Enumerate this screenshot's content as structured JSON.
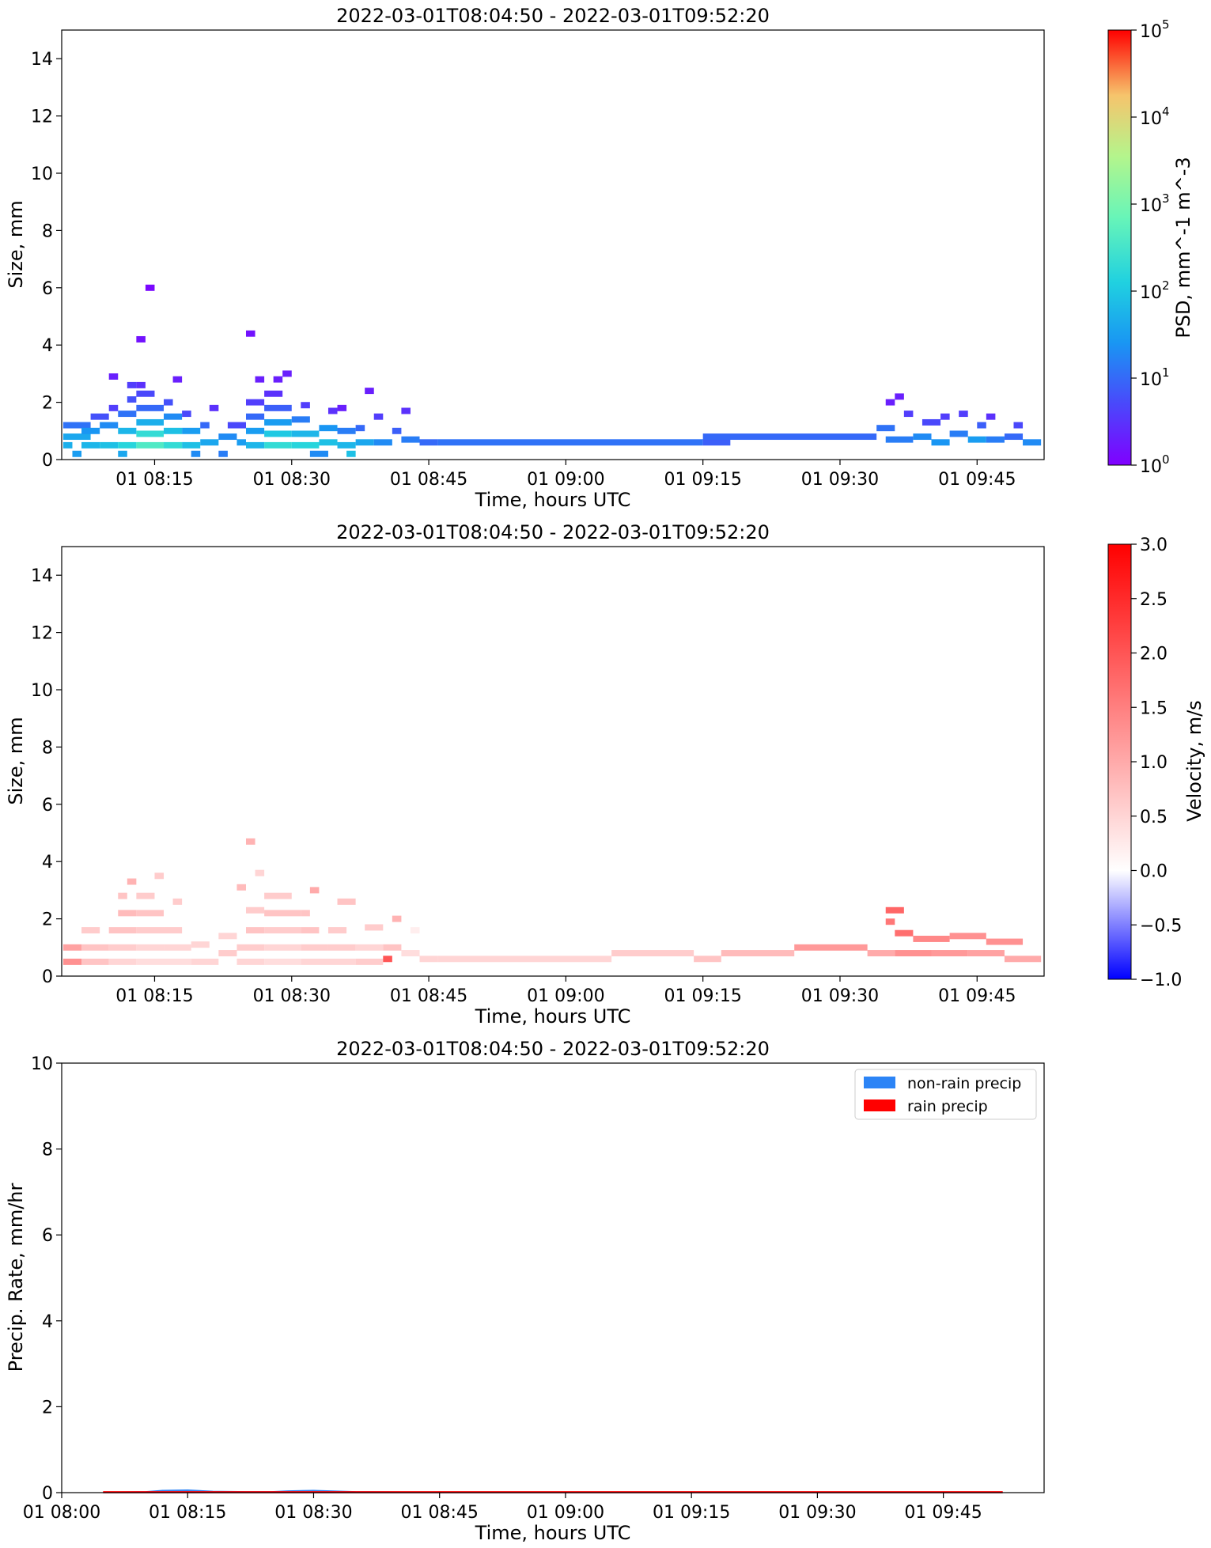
{
  "figure": {
    "panels": 3
  },
  "chart_data": [
    {
      "type": "heatmap",
      "title": "2022-03-01T08:04:50 - 2022-03-01T09:52:20",
      "xlabel": "Time, hours UTC",
      "ylabel": "Size, mm",
      "xlim": [
        "08:04:50",
        "09:52:20"
      ],
      "ylim": [
        0,
        15
      ],
      "x_ticks": [
        "01 08:15",
        "01 08:30",
        "01 08:45",
        "01 09:00",
        "01 09:15",
        "01 09:30",
        "01 09:45"
      ],
      "y_ticks": [
        "0",
        "2",
        "4",
        "6",
        "8",
        "10",
        "12",
        "14"
      ],
      "grid": false,
      "colorbar": {
        "label": "PSD, mm^-1 m^-3",
        "scale": "log",
        "range": [
          1,
          100000
        ],
        "ticks": [
          {
            "base": "10",
            "exp": "0"
          },
          {
            "base": "10",
            "exp": "1"
          },
          {
            "base": "10",
            "exp": "2"
          },
          {
            "base": "10",
            "exp": "3"
          },
          {
            "base": "10",
            "exp": "4"
          },
          {
            "base": "10",
            "exp": "5"
          }
        ],
        "colormap": "rainbow"
      },
      "cells": [
        [
          "08:05",
          "08:06",
          0.5,
          50
        ],
        [
          "08:05",
          "08:08",
          0.8,
          40
        ],
        [
          "08:05",
          "08:08",
          1.2,
          12
        ],
        [
          "08:06",
          "08:07",
          0.2,
          30
        ],
        [
          "08:07",
          "08:09",
          0.5,
          60
        ],
        [
          "08:07",
          "08:09",
          1.0,
          25
        ],
        [
          "08:08",
          "08:10",
          1.5,
          6
        ],
        [
          "08:09",
          "08:11",
          0.5,
          80
        ],
        [
          "08:09",
          "08:11",
          1.2,
          20
        ],
        [
          "08:10",
          "08:11",
          1.8,
          4
        ],
        [
          "08:10",
          "08:11",
          2.9,
          2
        ],
        [
          "08:11",
          "08:12",
          0.2,
          40
        ],
        [
          "08:11",
          "08:13",
          0.5,
          150
        ],
        [
          "08:11",
          "08:13",
          1.0,
          60
        ],
        [
          "08:11",
          "08:13",
          1.6,
          12
        ],
        [
          "08:12",
          "08:13",
          2.1,
          6
        ],
        [
          "08:12",
          "08:13",
          2.6,
          4
        ],
        [
          "08:13",
          "08:16",
          0.5,
          400
        ],
        [
          "08:13",
          "08:16",
          0.9,
          200
        ],
        [
          "08:13",
          "08:16",
          1.3,
          50
        ],
        [
          "08:13",
          "08:16",
          1.8,
          10
        ],
        [
          "08:13",
          "08:15",
          2.3,
          5
        ],
        [
          "08:13",
          "08:14",
          2.6,
          3
        ],
        [
          "08:13",
          "08:14",
          4.2,
          1.5
        ],
        [
          "08:14",
          "08:15",
          6.0,
          1.2
        ],
        [
          "08:16",
          "08:18",
          0.5,
          200
        ],
        [
          "08:16",
          "08:18",
          1.0,
          80
        ],
        [
          "08:16",
          "08:18",
          1.5,
          20
        ],
        [
          "08:16",
          "08:17",
          2.0,
          6
        ],
        [
          "08:17",
          "08:18",
          2.8,
          2
        ],
        [
          "08:18",
          "08:20",
          0.5,
          80
        ],
        [
          "08:18",
          "08:20",
          1.0,
          30
        ],
        [
          "08:18",
          "08:19",
          1.6,
          5
        ],
        [
          "08:19",
          "08:20",
          0.2,
          20
        ],
        [
          "08:20",
          "08:22",
          0.6,
          40
        ],
        [
          "08:20",
          "08:21",
          1.2,
          10
        ],
        [
          "08:21",
          "08:22",
          1.8,
          3
        ],
        [
          "08:22",
          "08:23",
          0.2,
          15
        ],
        [
          "08:22",
          "08:24",
          0.8,
          20
        ],
        [
          "08:23",
          "08:25",
          1.2,
          5
        ],
        [
          "08:24",
          "08:25",
          0.6,
          30
        ],
        [
          "08:25",
          "08:26",
          4.4,
          1.5
        ],
        [
          "08:25",
          "08:27",
          0.5,
          60
        ],
        [
          "08:25",
          "08:27",
          1.0,
          30
        ],
        [
          "08:25",
          "08:27",
          1.5,
          10
        ],
        [
          "08:25",
          "08:27",
          2.0,
          4
        ],
        [
          "08:26",
          "08:27",
          2.8,
          2
        ],
        [
          "08:27",
          "08:30",
          0.5,
          200
        ],
        [
          "08:27",
          "08:30",
          0.9,
          100
        ],
        [
          "08:27",
          "08:30",
          1.3,
          30
        ],
        [
          "08:27",
          "08:30",
          1.8,
          8
        ],
        [
          "08:27",
          "08:29",
          2.3,
          3
        ],
        [
          "08:28",
          "08:29",
          2.8,
          2
        ],
        [
          "08:29",
          "08:30",
          3.0,
          2
        ],
        [
          "08:30",
          "08:33",
          0.5,
          150
        ],
        [
          "08:30",
          "08:33",
          0.9,
          60
        ],
        [
          "08:30",
          "08:32",
          1.4,
          15
        ],
        [
          "08:31",
          "08:32",
          1.9,
          4
        ],
        [
          "08:32",
          "08:34",
          0.2,
          20
        ],
        [
          "08:33",
          "08:35",
          0.6,
          80
        ],
        [
          "08:33",
          "08:35",
          1.1,
          25
        ],
        [
          "08:34",
          "08:35",
          1.7,
          3
        ],
        [
          "08:35",
          "08:37",
          0.5,
          60
        ],
        [
          "08:35",
          "08:37",
          1.0,
          15
        ],
        [
          "08:35",
          "08:36",
          1.8,
          2
        ],
        [
          "08:36",
          "08:37",
          0.2,
          80
        ],
        [
          "08:37",
          "08:39",
          0.6,
          40
        ],
        [
          "08:37",
          "08:38",
          1.1,
          10
        ],
        [
          "08:38",
          "08:39",
          2.4,
          2
        ],
        [
          "08:39",
          "08:41",
          0.6,
          20
        ],
        [
          "08:39",
          "08:40",
          1.5,
          4
        ],
        [
          "08:41",
          "08:42",
          1.0,
          8
        ],
        [
          "08:42",
          "08:43",
          1.7,
          3
        ],
        [
          "08:42",
          "08:44",
          0.7,
          15
        ],
        [
          "08:44",
          "08:46",
          0.6,
          10
        ],
        [
          "08:46",
          "09:15",
          0.6,
          12
        ],
        [
          "09:15",
          "09:18",
          0.6,
          8
        ],
        [
          "09:15",
          "09:34",
          0.8,
          10
        ],
        [
          "09:34",
          "09:36",
          1.1,
          12
        ],
        [
          "09:35",
          "09:36",
          2.0,
          2
        ],
        [
          "09:36",
          "09:37",
          2.2,
          2
        ],
        [
          "09:35",
          "09:38",
          0.7,
          15
        ],
        [
          "09:37",
          "09:38",
          1.6,
          4
        ],
        [
          "09:38",
          "09:40",
          0.8,
          20
        ],
        [
          "09:39",
          "09:41",
          1.3,
          5
        ],
        [
          "09:40",
          "09:42",
          0.6,
          25
        ],
        [
          "09:41",
          "09:42",
          1.5,
          4
        ],
        [
          "09:42",
          "09:44",
          0.9,
          15
        ],
        [
          "09:43",
          "09:44",
          1.6,
          4
        ],
        [
          "09:44",
          "09:46",
          0.7,
          30
        ],
        [
          "09:45",
          "09:46",
          1.2,
          8
        ],
        [
          "09:46",
          "09:47",
          1.5,
          3
        ],
        [
          "09:46",
          "09:48",
          0.7,
          15
        ],
        [
          "09:48",
          "09:50",
          0.8,
          10
        ],
        [
          "09:49",
          "09:50",
          1.2,
          5
        ],
        [
          "09:50",
          "09:52",
          0.6,
          20
        ]
      ]
    },
    {
      "type": "heatmap",
      "title": "2022-03-01T08:04:50 - 2022-03-01T09:52:20",
      "xlabel": "Time, hours UTC",
      "ylabel": "Size, mm",
      "xlim": [
        "08:04:50",
        "09:52:20"
      ],
      "ylim": [
        0,
        15
      ],
      "x_ticks": [
        "01 08:15",
        "01 08:30",
        "01 08:45",
        "01 09:00",
        "01 09:15",
        "01 09:30",
        "01 09:45"
      ],
      "y_ticks": [
        "0",
        "2",
        "4",
        "6",
        "8",
        "10",
        "12",
        "14"
      ],
      "grid": false,
      "colorbar": {
        "label": "Velocity, m/s",
        "scale": "diverging",
        "range": [
          -1.0,
          3.0
        ],
        "center": 0.0,
        "ticks": [
          "3.0",
          "2.5",
          "2.0",
          "1.5",
          "1.0",
          "0.5",
          "0.0",
          "−0.5",
          "−1.0"
        ],
        "tick_values": [
          3.0,
          2.5,
          2.0,
          1.5,
          1.0,
          0.5,
          0.0,
          -0.5,
          -1.0
        ],
        "colormap": "bwr"
      },
      "cells": [
        [
          "08:05",
          "08:07",
          0.5,
          1.3
        ],
        [
          "08:05",
          "08:07",
          1.0,
          1.1
        ],
        [
          "08:07",
          "08:10",
          0.5,
          0.7
        ],
        [
          "08:07",
          "08:10",
          1.0,
          0.7
        ],
        [
          "08:07",
          "08:09",
          1.6,
          0.6
        ],
        [
          "08:10",
          "08:13",
          0.5,
          0.5
        ],
        [
          "08:10",
          "08:13",
          1.0,
          0.6
        ],
        [
          "08:10",
          "08:13",
          1.6,
          0.7
        ],
        [
          "08:11",
          "08:13",
          2.2,
          0.8
        ],
        [
          "08:11",
          "08:12",
          2.8,
          0.7
        ],
        [
          "08:12",
          "08:13",
          3.3,
          0.9
        ],
        [
          "08:13",
          "08:16",
          0.5,
          0.4
        ],
        [
          "08:13",
          "08:16",
          1.0,
          0.5
        ],
        [
          "08:13",
          "08:16",
          1.6,
          0.6
        ],
        [
          "08:13",
          "08:16",
          2.2,
          0.7
        ],
        [
          "08:13",
          "08:15",
          2.8,
          0.6
        ],
        [
          "08:15",
          "08:16",
          3.5,
          0.6
        ],
        [
          "08:16",
          "08:19",
          0.5,
          0.4
        ],
        [
          "08:16",
          "08:19",
          1.0,
          0.5
        ],
        [
          "08:16",
          "08:18",
          1.6,
          0.6
        ],
        [
          "08:17",
          "08:18",
          2.6,
          0.6
        ],
        [
          "08:19",
          "08:22",
          0.5,
          0.5
        ],
        [
          "08:19",
          "08:21",
          1.1,
          0.5
        ],
        [
          "08:22",
          "08:24",
          0.8,
          0.6
        ],
        [
          "08:22",
          "08:24",
          1.4,
          0.5
        ],
        [
          "08:24",
          "08:25",
          3.1,
          0.8
        ],
        [
          "08:25",
          "08:26",
          4.7,
          0.9
        ],
        [
          "08:24",
          "08:27",
          0.5,
          0.5
        ],
        [
          "08:24",
          "08:27",
          1.0,
          0.6
        ],
        [
          "08:25",
          "08:27",
          1.6,
          0.7
        ],
        [
          "08:25",
          "08:27",
          2.3,
          0.6
        ],
        [
          "08:26",
          "08:27",
          3.6,
          0.5
        ],
        [
          "08:27",
          "08:31",
          0.5,
          0.4
        ],
        [
          "08:27",
          "08:31",
          1.0,
          0.5
        ],
        [
          "08:27",
          "08:31",
          1.6,
          0.6
        ],
        [
          "08:27",
          "08:31",
          2.2,
          0.7
        ],
        [
          "08:27",
          "08:30",
          2.8,
          0.6
        ],
        [
          "08:31",
          "08:34",
          0.5,
          0.5
        ],
        [
          "08:31",
          "08:34",
          1.0,
          0.6
        ],
        [
          "08:31",
          "08:33",
          1.6,
          0.7
        ],
        [
          "08:31",
          "08:32",
          2.2,
          0.7
        ],
        [
          "08:32",
          "08:33",
          3.0,
          1.0
        ],
        [
          "08:34",
          "08:37",
          0.5,
          0.5
        ],
        [
          "08:34",
          "08:37",
          1.0,
          0.6
        ],
        [
          "08:34",
          "08:36",
          1.6,
          0.6
        ],
        [
          "08:35",
          "08:37",
          2.6,
          0.7
        ],
        [
          "08:37",
          "08:40",
          0.5,
          0.6
        ],
        [
          "08:37",
          "08:40",
          1.0,
          0.5
        ],
        [
          "08:38",
          "08:40",
          1.7,
          0.6
        ],
        [
          "08:40",
          "08:41",
          0.6,
          2.0
        ],
        [
          "08:40",
          "08:42",
          1.0,
          0.7
        ],
        [
          "08:41",
          "08:42",
          2.0,
          0.9
        ],
        [
          "08:42",
          "08:44",
          0.8,
          0.4
        ],
        [
          "08:43",
          "08:44",
          1.6,
          0.2
        ],
        [
          "08:44",
          "08:46",
          0.6,
          0.5
        ],
        [
          "08:46",
          "09:05",
          0.6,
          0.5
        ],
        [
          "09:05",
          "09:14",
          0.8,
          0.6
        ],
        [
          "09:14",
          "09:17",
          0.6,
          0.7
        ],
        [
          "09:17",
          "09:25",
          0.8,
          0.8
        ],
        [
          "09:25",
          "09:33",
          1.0,
          1.2
        ],
        [
          "09:33",
          "09:36",
          0.8,
          1.0
        ],
        [
          "09:35",
          "09:36",
          1.9,
          1.6
        ],
        [
          "09:35",
          "09:37",
          2.3,
          1.8
        ],
        [
          "09:36",
          "09:38",
          1.5,
          1.7
        ],
        [
          "09:36",
          "09:40",
          0.8,
          1.3
        ],
        [
          "09:38",
          "09:42",
          1.3,
          1.4
        ],
        [
          "09:40",
          "09:44",
          0.8,
          1.2
        ],
        [
          "09:42",
          "09:46",
          1.4,
          1.3
        ],
        [
          "09:44",
          "09:48",
          0.8,
          1.1
        ],
        [
          "09:46",
          "09:50",
          1.2,
          1.3
        ],
        [
          "09:48",
          "09:52",
          0.6,
          1.0
        ]
      ]
    },
    {
      "type": "area",
      "title": "2022-03-01T08:04:50 - 2022-03-01T09:52:20",
      "xlabel": "Time, hours UTC",
      "ylabel": "Precip. Rate, mm/hr",
      "xlim": [
        "08:00",
        "09:57"
      ],
      "ylim": [
        0,
        10
      ],
      "x_ticks": [
        "01 08:00",
        "01 08:15",
        "01 08:30",
        "01 08:45",
        "01 09:00",
        "01 09:15",
        "01 09:30",
        "01 09:45"
      ],
      "y_ticks": [
        "0",
        "2",
        "4",
        "6",
        "8",
        "10"
      ],
      "grid": false,
      "legend_position": "top-right",
      "series": [
        {
          "name": "non-rain precip",
          "color": "#2c84f6",
          "x": [
            "08:05",
            "08:10",
            "08:12",
            "08:15",
            "08:18",
            "08:22",
            "08:25",
            "08:27",
            "08:30",
            "08:35",
            "08:45",
            "09:00",
            "09:15",
            "09:30",
            "09:45",
            "09:52"
          ],
          "values": [
            0.01,
            0.02,
            0.05,
            0.06,
            0.03,
            0.02,
            0.02,
            0.04,
            0.05,
            0.02,
            0.01,
            0.01,
            0.01,
            0.01,
            0.01,
            0.01
          ]
        },
        {
          "name": "rain precip",
          "color": "#ff0000",
          "x": [
            "08:05",
            "08:52",
            "09:52"
          ],
          "values": [
            0.02,
            0.02,
            0.02
          ]
        }
      ]
    }
  ]
}
